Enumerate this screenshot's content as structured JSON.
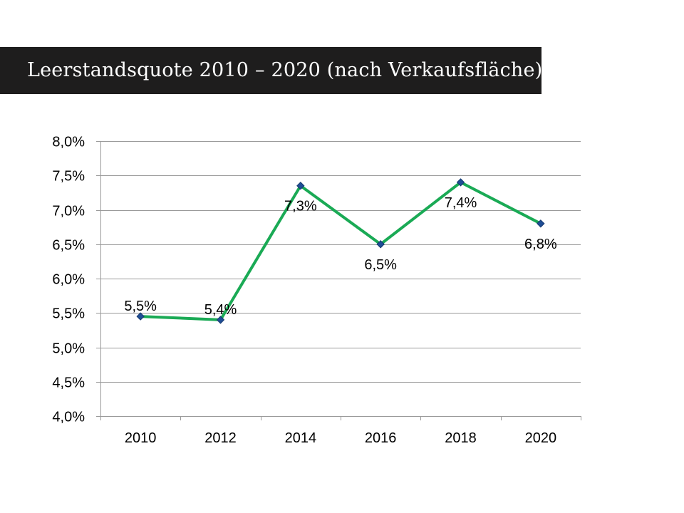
{
  "slide": {
    "title": "Leerstandsquote 2010 – 2020 (nach Verkaufsfläche)"
  },
  "colors": {
    "title_bar": "#1e1d1d",
    "line": "#1aaa55",
    "marker": "#1f4e96",
    "grid": "#9a9a9a",
    "text": "#000000"
  },
  "chart_data": {
    "type": "line",
    "categories": [
      "2010",
      "2012",
      "2014",
      "2016",
      "2018",
      "2020"
    ],
    "series": [
      {
        "values": [
          5.45,
          5.4,
          7.35,
          6.5,
          7.4,
          6.8
        ],
        "data_labels": [
          "5,5%",
          "5,4%",
          "7,3%",
          "6,5%",
          "7,4%",
          "6,8%"
        ]
      }
    ],
    "ylim": [
      4.0,
      8.0
    ],
    "ytick_labels": [
      "4,0%",
      "4,5%",
      "5,0%",
      "5,5%",
      "6,0%",
      "6,5%",
      "7,0%",
      "7,5%",
      "8,0%"
    ],
    "grid": true,
    "legend": "none"
  }
}
